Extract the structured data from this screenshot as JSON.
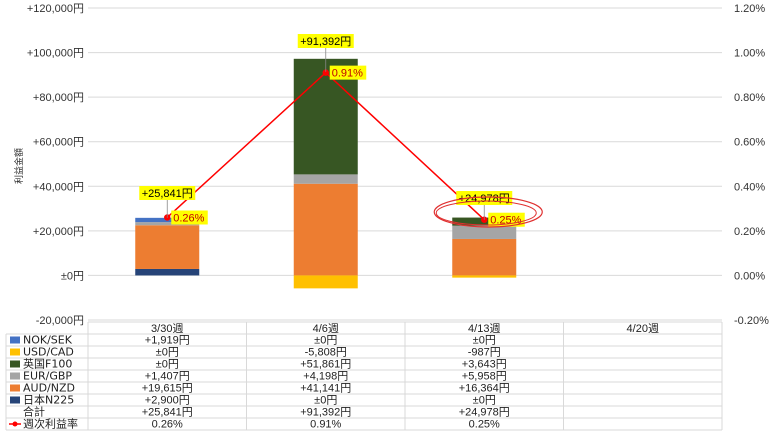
{
  "chart_data": {
    "type": "bar",
    "subtype": "stacked-bar-with-line",
    "ylabel": "利益金額",
    "ylim": [
      -20000,
      120000
    ],
    "y2lim": [
      -0.2,
      1.2
    ],
    "y_ticks": [
      "-20,000円",
      "±0円",
      "+20,000円",
      "+40,000円",
      "+60,000円",
      "+80,000円",
      "+100,000円",
      "+120,000円"
    ],
    "y2_ticks": [
      "-0.20%",
      "0.00%",
      "0.20%",
      "0.40%",
      "0.60%",
      "0.80%",
      "1.00%",
      "1.20%"
    ],
    "categories": [
      "3/30週",
      "4/6週",
      "4/13週",
      "4/20週"
    ],
    "grid": true,
    "legend_position": "table-left",
    "series": [
      {
        "name": "NOK/SEK",
        "color": "#4472c4",
        "values": [
          1919,
          0,
          0,
          null
        ],
        "labels": [
          "+1,919円",
          "±0円",
          "±0円",
          ""
        ]
      },
      {
        "name": "USD/CAD",
        "color": "#ffc000",
        "values": [
          0,
          -5808,
          -987,
          null
        ],
        "labels": [
          "±0円",
          "-5,808円",
          "-987円",
          ""
        ]
      },
      {
        "name": "英国F100",
        "color": "#375623",
        "values": [
          0,
          51861,
          3643,
          null
        ],
        "labels": [
          "±0円",
          "+51,861円",
          "+3,643円",
          ""
        ]
      },
      {
        "name": "EUR/GBP",
        "color": "#a5a5a5",
        "values": [
          1407,
          4198,
          5958,
          null
        ],
        "labels": [
          "+1,407円",
          "+4,198円",
          "+5,958円",
          ""
        ]
      },
      {
        "name": "AUD/NZD",
        "color": "#ed7d31",
        "values": [
          19615,
          41141,
          16364,
          null
        ],
        "labels": [
          "+19,615円",
          "+41,141円",
          "+16,364円",
          ""
        ]
      },
      {
        "name": "日本N225",
        "color": "#264478",
        "values": [
          2900,
          0,
          0,
          null
        ],
        "labels": [
          "+2,900円",
          "±0円",
          "±0円",
          ""
        ]
      }
    ],
    "stack_order_bottom_to_top": [
      "日本N225",
      "AUD/NZD",
      "EUR/GBP",
      "英国F100",
      "NOK/SEK"
    ],
    "totals": {
      "name": "合計",
      "values": [
        25841,
        91392,
        24978,
        null
      ],
      "labels": [
        "+25,841円",
        "+91,392円",
        "+24,978円",
        ""
      ]
    },
    "line": {
      "name": "週次利益率",
      "color": "#ff0000",
      "axis": "right",
      "values": [
        0.26,
        0.91,
        0.25,
        null
      ],
      "labels": [
        "0.26%",
        "0.91%",
        "0.25%",
        ""
      ]
    }
  }
}
